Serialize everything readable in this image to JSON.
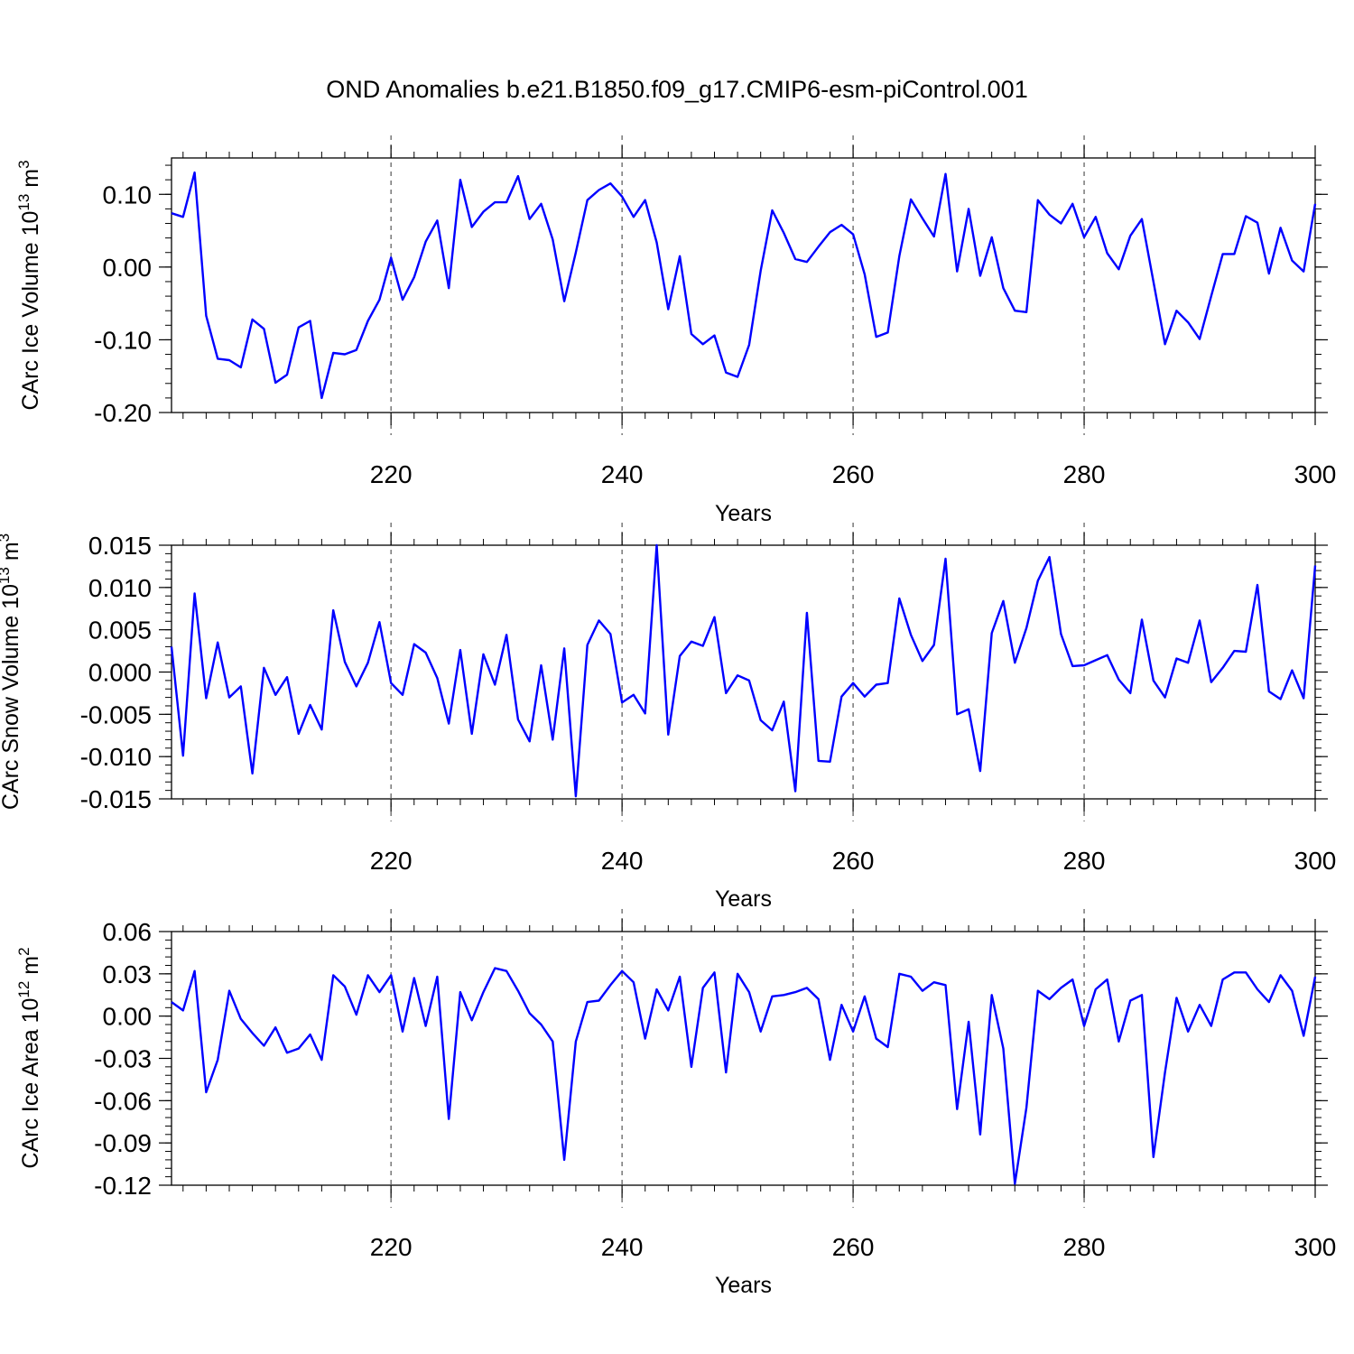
{
  "figure": {
    "title": "OND Anomalies b.e21.B1850.f09_g17.CMIP6-esm-piControl.001"
  },
  "colors": {
    "line": "#0000ff",
    "axes": "#000000",
    "grid": "#555555"
  },
  "chart_data": [
    {
      "type": "line",
      "title": "",
      "xlabel": "Years",
      "ylabel": "CArc Ice Volume 10",
      "ylabel_exp": "13",
      "ylabel_unit": " m",
      "ylabel_unit_exp": "3",
      "xlim": [
        201,
        300
      ],
      "ylim": [
        -0.2,
        0.15
      ],
      "yticks": [
        -0.2,
        -0.1,
        0.0,
        0.1
      ],
      "ytick_labels": [
        "-0.20",
        "-0.10",
        "0.00",
        "0.10"
      ],
      "xticks": [
        220,
        240,
        260,
        280,
        300
      ],
      "xtick_labels": [
        "220",
        "240",
        "260",
        "280",
        "300"
      ],
      "grid_x": [
        220,
        240,
        260,
        280
      ],
      "x_start": 201,
      "values": [
        0.074,
        0.069,
        0.13,
        -0.067,
        -0.126,
        -0.128,
        -0.138,
        -0.072,
        -0.085,
        -0.159,
        -0.148,
        -0.083,
        -0.074,
        -0.18,
        -0.118,
        -0.12,
        -0.114,
        -0.074,
        -0.045,
        0.013,
        -0.045,
        -0.014,
        0.035,
        0.064,
        -0.029,
        0.12,
        0.055,
        0.076,
        0.089,
        0.089,
        0.125,
        0.066,
        0.087,
        0.038,
        -0.047,
        0.02,
        0.092,
        0.106,
        0.115,
        0.097,
        0.069,
        0.092,
        0.034,
        -0.058,
        0.015,
        -0.092,
        -0.106,
        -0.094,
        -0.145,
        -0.151,
        -0.107,
        -0.005,
        0.078,
        0.047,
        0.011,
        0.007,
        0.028,
        0.048,
        0.058,
        0.045,
        -0.01,
        -0.096,
        -0.09,
        0.015,
        0.093,
        0.067,
        0.042,
        0.128,
        -0.006,
        0.08,
        -0.012,
        0.041,
        -0.029,
        -0.06,
        -0.062,
        0.092,
        0.072,
        0.06,
        0.087,
        0.041,
        0.069,
        0.019,
        -0.003,
        0.043,
        0.066,
        -0.02,
        -0.106,
        -0.06,
        -0.076,
        -0.099,
        -0.04,
        0.018,
        0.018,
        0.07,
        0.061,
        -0.009,
        0.054,
        0.009,
        -0.006,
        0.087
      ]
    },
    {
      "type": "line",
      "title": "",
      "xlabel": "Years",
      "ylabel": "CArc Snow Volume 10",
      "ylabel_exp": "13",
      "ylabel_unit": " m",
      "ylabel_unit_exp": "3",
      "xlim": [
        201,
        300
      ],
      "ylim": [
        -0.015,
        0.015
      ],
      "yticks": [
        -0.015,
        -0.01,
        -0.005,
        0.0,
        0.005,
        0.01,
        0.015
      ],
      "ytick_labels": [
        "-0.015",
        "-0.010",
        "-0.005",
        "0.000",
        "0.005",
        "0.010",
        "0.015"
      ],
      "xticks": [
        220,
        240,
        260,
        280,
        300
      ],
      "xtick_labels": [
        "220",
        "240",
        "260",
        "280",
        "300"
      ],
      "grid_x": [
        220,
        240,
        260,
        280
      ],
      "x_start": 201,
      "values": [
        0.003,
        -0.0099,
        0.0093,
        -0.0031,
        0.0035,
        -0.003,
        -0.0017,
        -0.012,
        0.0005,
        -0.0027,
        -0.0006,
        -0.0073,
        -0.0039,
        -0.0068,
        0.0073,
        0.0012,
        -0.0017,
        0.0011,
        0.0059,
        -0.0013,
        -0.0027,
        0.0033,
        0.0023,
        -0.0007,
        -0.0061,
        0.0026,
        -0.0073,
        0.0021,
        -0.0015,
        0.0044,
        -0.0056,
        -0.0082,
        0.0008,
        -0.008,
        0.0028,
        -0.0147,
        0.0032,
        0.0061,
        0.0045,
        -0.0036,
        -0.0027,
        -0.0049,
        0.015,
        -0.0074,
        0.0019,
        0.0036,
        0.0031,
        0.0065,
        -0.0025,
        -0.0004,
        -0.001,
        -0.0057,
        -0.0069,
        -0.0035,
        -0.0141,
        0.007,
        -0.0105,
        -0.0106,
        -0.0029,
        -0.0013,
        -0.0029,
        -0.0015,
        -0.0013,
        0.0087,
        0.0044,
        0.0013,
        0.0032,
        0.0134,
        -0.005,
        -0.0044,
        -0.0117,
        0.0046,
        0.0084,
        0.0011,
        0.0052,
        0.0108,
        0.0136,
        0.0045,
        0.0007,
        0.0008,
        0.0014,
        0.002,
        -0.0009,
        -0.0025,
        0.0062,
        -0.001,
        -0.003,
        0.0016,
        0.0011,
        0.0061,
        -0.0012,
        0.0005,
        0.0025,
        0.0024,
        0.0103,
        -0.0023,
        -0.0032,
        0.0002,
        -0.0031,
        0.0126
      ]
    },
    {
      "type": "line",
      "title": "",
      "xlabel": "Years",
      "ylabel": "CArc Ice Area 10",
      "ylabel_exp": "12",
      "ylabel_unit": " m",
      "ylabel_unit_exp": "2",
      "xlim": [
        201,
        300
      ],
      "ylim": [
        -0.12,
        0.06
      ],
      "yticks": [
        -0.12,
        -0.09,
        -0.06,
        -0.03,
        0.0,
        0.03,
        0.06
      ],
      "ytick_labels": [
        "-0.12",
        "-0.09",
        "-0.06",
        "-0.03",
        "0.00",
        "0.03",
        "0.06"
      ],
      "xticks": [
        220,
        240,
        260,
        280,
        300
      ],
      "xtick_labels": [
        "220",
        "240",
        "260",
        "280",
        "300"
      ],
      "grid_x": [
        220,
        240,
        260,
        280
      ],
      "x_start": 201,
      "values": [
        0.01,
        0.004,
        0.032,
        -0.054,
        -0.031,
        0.018,
        -0.002,
        -0.012,
        -0.021,
        -0.008,
        -0.026,
        -0.023,
        -0.013,
        -0.031,
        0.029,
        0.021,
        0.001,
        0.029,
        0.017,
        0.029,
        -0.011,
        0.027,
        -0.007,
        0.028,
        -0.073,
        0.017,
        -0.003,
        0.017,
        0.034,
        0.032,
        0.018,
        0.002,
        -0.006,
        -0.018,
        -0.102,
        -0.018,
        0.01,
        0.011,
        0.022,
        0.032,
        0.024,
        -0.016,
        0.019,
        0.004,
        0.028,
        -0.036,
        0.02,
        0.031,
        -0.04,
        0.03,
        0.017,
        -0.011,
        0.014,
        0.015,
        0.017,
        0.02,
        0.012,
        -0.031,
        0.008,
        -0.011,
        0.014,
        -0.016,
        -0.022,
        0.03,
        0.028,
        0.018,
        0.024,
        0.022,
        -0.066,
        -0.004,
        -0.084,
        0.015,
        -0.023,
        -0.119,
        -0.065,
        0.018,
        0.012,
        0.02,
        0.026,
        -0.007,
        0.019,
        0.026,
        -0.018,
        0.011,
        0.015,
        -0.1,
        -0.04,
        0.013,
        -0.011,
        0.008,
        -0.007,
        0.026,
        0.031,
        0.031,
        0.019,
        0.01,
        0.029,
        0.018,
        -0.014,
        0.028
      ]
    }
  ]
}
